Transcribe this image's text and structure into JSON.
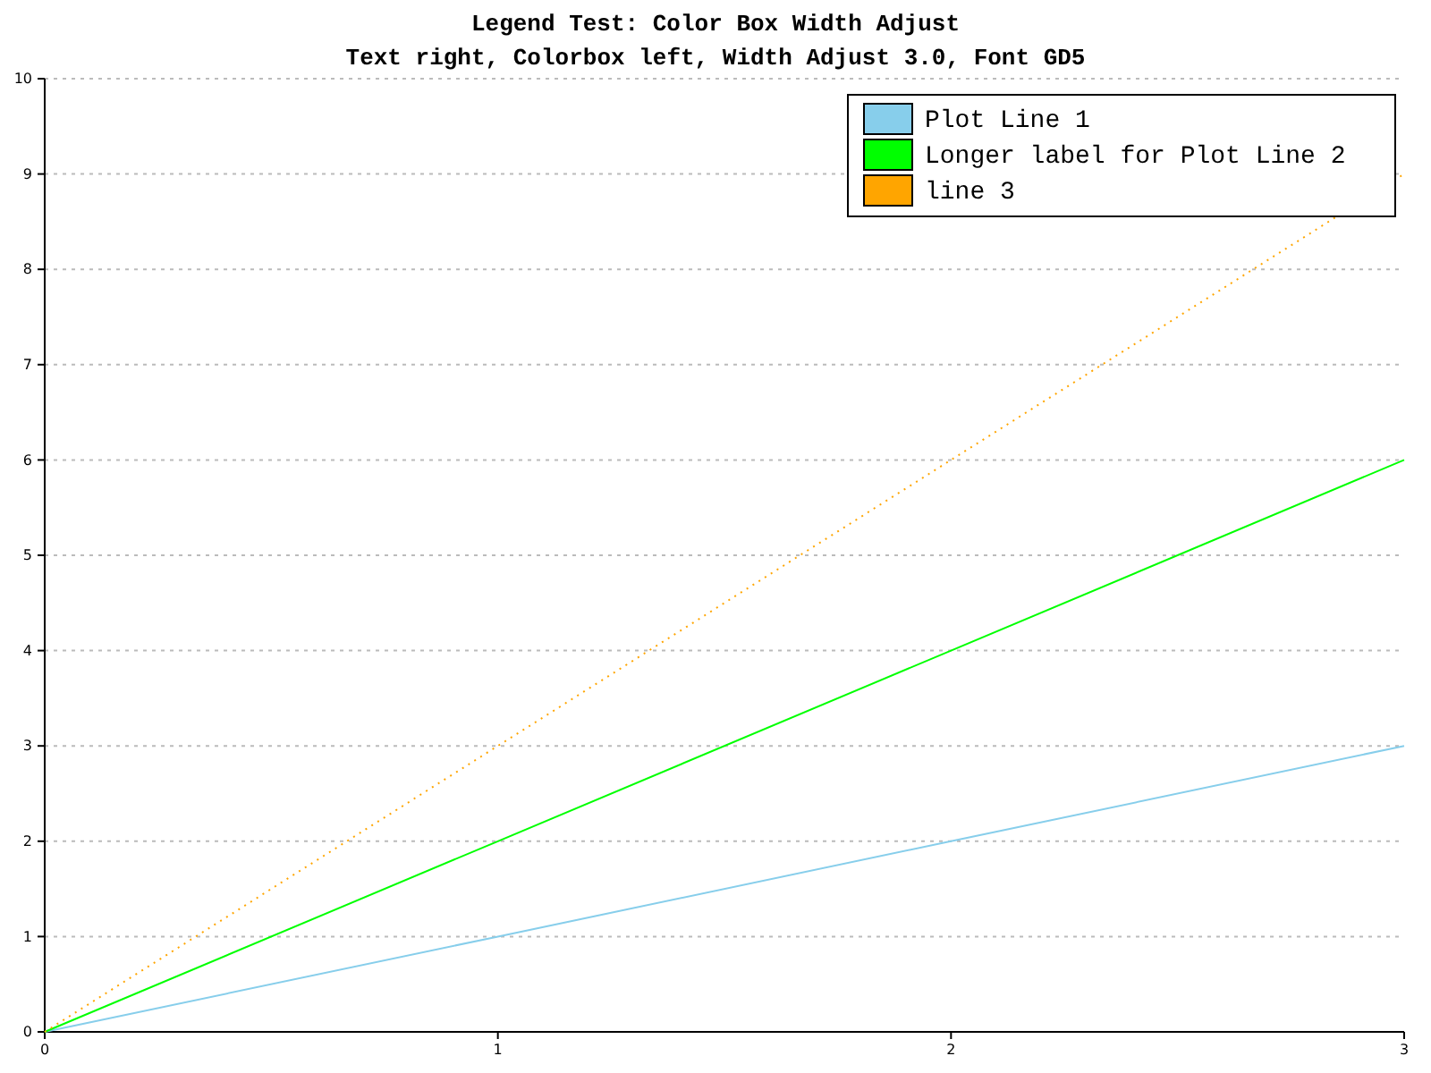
{
  "chart_data": {
    "type": "line",
    "title": "Legend Test: Color Box Width Adjust",
    "subtitle": "Text right, Colorbox left, Width Adjust 3.0, Font GD5",
    "x": [
      0,
      1,
      2,
      3
    ],
    "series": [
      {
        "name": "Plot Line 1",
        "color": "#87ceeb",
        "values": [
          0,
          1,
          2,
          3
        ],
        "line_style": "solid"
      },
      {
        "name": "Longer label for Plot Line 2",
        "color": "#00ff00",
        "values": [
          0,
          2,
          4,
          6
        ],
        "line_style": "solid"
      },
      {
        "name": "line 3",
        "color": "#ffa500",
        "values": [
          0,
          3,
          6,
          9
        ],
        "line_style": "dotted"
      }
    ],
    "xlim": [
      0,
      3
    ],
    "xticks": [
      0,
      1,
      2,
      3
    ],
    "ylim": [
      0,
      10
    ],
    "yticks": [
      0,
      1,
      2,
      3,
      4,
      5,
      6,
      7,
      8,
      9,
      10
    ],
    "grid": "y",
    "legend": "top right",
    "marker": "none"
  }
}
